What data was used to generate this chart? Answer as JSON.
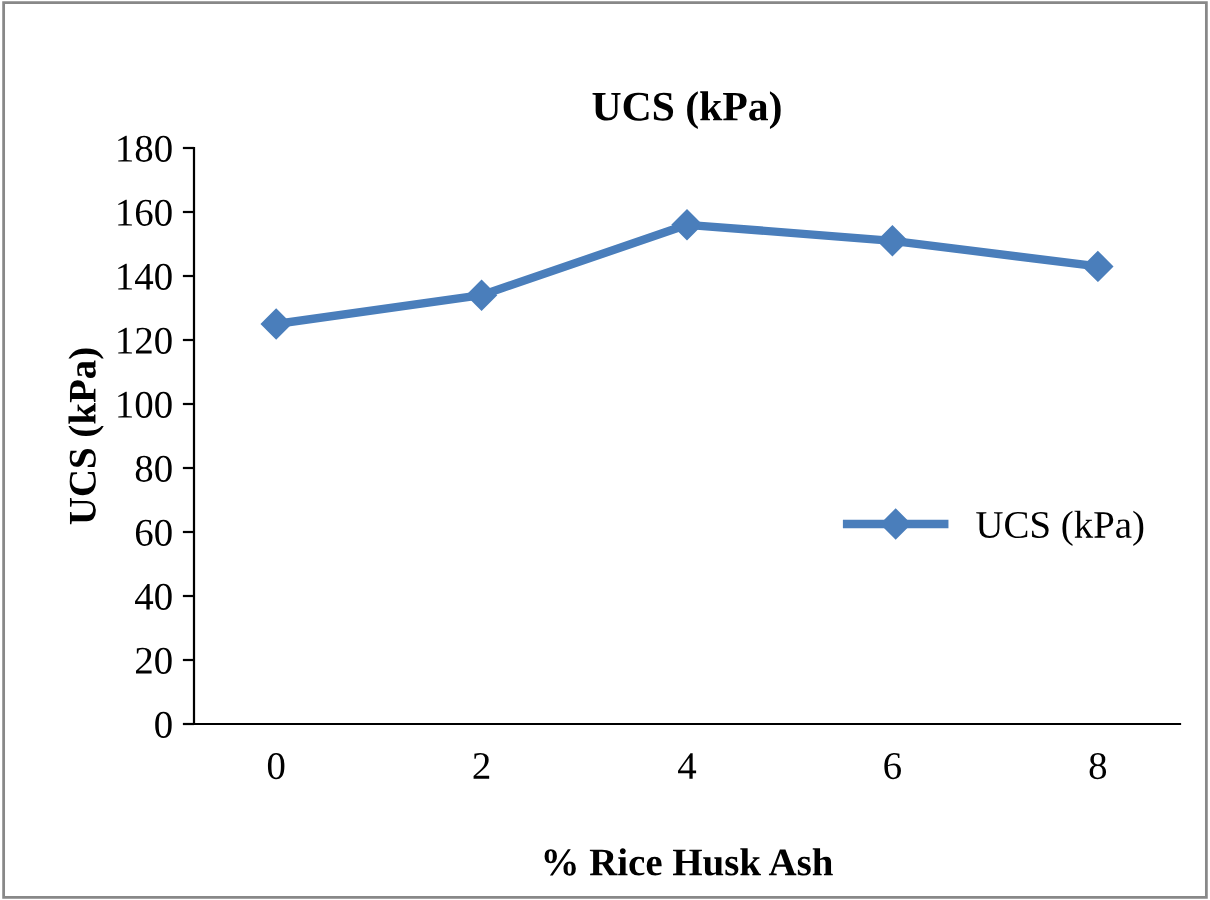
{
  "chart_data": {
    "type": "line",
    "title": "UCS (kPa)",
    "xlabel": "% Rice Husk Ash",
    "ylabel": "UCS (kPa)",
    "categories": [
      "0",
      "2",
      "4",
      "6",
      "8"
    ],
    "series": [
      {
        "name": "UCS (kPa)",
        "color": "#4a7ebb",
        "values": [
          125,
          134,
          156,
          151,
          143
        ]
      }
    ],
    "ylim": [
      0,
      180
    ],
    "yticks": [
      0,
      20,
      40,
      60,
      80,
      100,
      120,
      140,
      160,
      180
    ],
    "marker": "diamond",
    "line_style": "solid",
    "legend": "right",
    "grid": false
  }
}
